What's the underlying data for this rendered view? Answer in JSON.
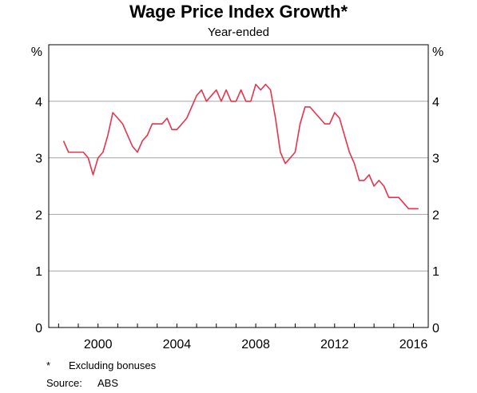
{
  "chart_data": {
    "type": "line",
    "title": "Wage Price Index Growth*",
    "subtitle": "Year-ended",
    "ylabel_left": "%",
    "ylabel_right": "%",
    "ylim": [
      0,
      5
    ],
    "yticks": [
      0,
      1,
      2,
      3,
      4
    ],
    "xlim": [
      1997.5,
      2016.75
    ],
    "xticks": [
      2000,
      2004,
      2008,
      2012,
      2016
    ],
    "grid": true,
    "line_color": "#e8334a",
    "series": [
      {
        "x": [
          1998.25,
          1998.5,
          1998.75,
          1999,
          1999.25,
          1999.5,
          1999.75,
          2000,
          2000.25,
          2000.5,
          2000.75,
          2001,
          2001.25,
          2001.5,
          2001.75,
          2002,
          2002.25,
          2002.5,
          2002.75,
          2003,
          2003.25,
          2003.5,
          2003.75,
          2004,
          2004.25,
          2004.5,
          2004.75,
          2005,
          2005.25,
          2005.5,
          2005.75,
          2006,
          2006.25,
          2006.5,
          2006.75,
          2007,
          2007.25,
          2007.5,
          2007.75,
          2008,
          2008.25,
          2008.5,
          2008.75,
          2009,
          2009.25,
          2009.5,
          2009.75,
          2010,
          2010.25,
          2010.5,
          2010.75,
          2011,
          2011.25,
          2011.5,
          2011.75,
          2012,
          2012.25,
          2012.5,
          2012.75,
          2013,
          2013.25,
          2013.5,
          2013.75,
          2014,
          2014.25,
          2014.5,
          2014.75,
          2015,
          2015.25,
          2015.5,
          2015.75,
          2016,
          2016.25
        ],
        "values": [
          3.3,
          3.1,
          3.1,
          3.1,
          3.1,
          3.0,
          2.7,
          3.0,
          3.1,
          3.4,
          3.8,
          3.7,
          3.6,
          3.4,
          3.2,
          3.1,
          3.3,
          3.4,
          3.6,
          3.6,
          3.6,
          3.7,
          3.5,
          3.5,
          3.6,
          3.7,
          3.9,
          4.1,
          4.2,
          4.0,
          4.1,
          4.2,
          4.0,
          4.2,
          4.0,
          4.0,
          4.2,
          4.0,
          4.0,
          4.3,
          4.2,
          4.3,
          4.2,
          3.7,
          3.1,
          2.9,
          3.0,
          3.1,
          3.6,
          3.9,
          3.9,
          3.8,
          3.7,
          3.6,
          3.6,
          3.8,
          3.7,
          3.4,
          3.1,
          2.9,
          2.6,
          2.6,
          2.7,
          2.5,
          2.6,
          2.5,
          2.3,
          2.3,
          2.3,
          2.2,
          2.1,
          2.1,
          2.1
        ]
      }
    ]
  },
  "footnotes": {
    "mark": "*",
    "note": "Excluding bonuses",
    "source_label": "Source:",
    "source_value": "ABS"
  }
}
